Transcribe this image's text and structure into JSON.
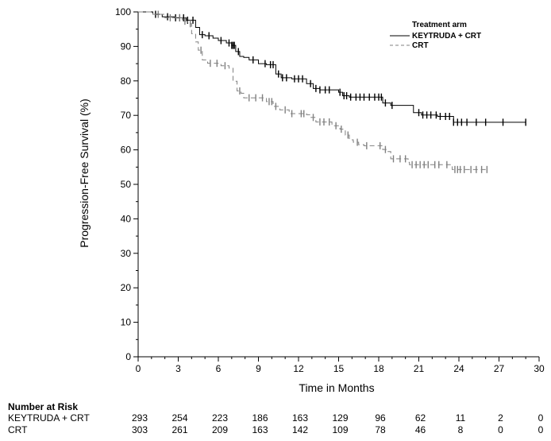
{
  "chart_data": {
    "type": "line",
    "title": "",
    "xlabel": "Time in Months",
    "ylabel": "Progression-Free Survival (%)",
    "xlim": [
      0,
      30
    ],
    "ylim": [
      0,
      100
    ],
    "x_ticks": [
      0,
      3,
      6,
      9,
      12,
      15,
      18,
      21,
      24,
      27,
      30
    ],
    "y_ticks": [
      0,
      10,
      20,
      30,
      40,
      50,
      60,
      70,
      80,
      90,
      100
    ],
    "grid": false,
    "legend": {
      "title": "Treatment arm",
      "placement": "top-right"
    },
    "series": [
      {
        "name": "KEYTRUDA + CRT",
        "color": "#000000",
        "line_style": "solid",
        "x": [
          0,
          1.1,
          1.8,
          2.7,
          3.6,
          4.3,
          4.6,
          5.0,
          5.6,
          6.0,
          6.6,
          7.0,
          7.3,
          7.6,
          7.9,
          8.3,
          9.0,
          9.6,
          10.3,
          10.7,
          11.5,
          12.6,
          13.1,
          13.6,
          15.0,
          15.3,
          15.8,
          18.3,
          18.9,
          20.6,
          21.2,
          22.4,
          23.6
        ],
        "y": [
          100,
          99.3,
          98.6,
          98.3,
          97.6,
          95.5,
          93.4,
          93.1,
          92.4,
          91.7,
          91.0,
          90.3,
          88.5,
          87.1,
          86.8,
          86.1,
          85.0,
          84.7,
          82.0,
          80.9,
          80.6,
          79.2,
          77.8,
          77.4,
          76.7,
          75.7,
          75.3,
          73.6,
          72.9,
          70.8,
          70.1,
          69.7,
          68.0
        ],
        "censor_x": [
          1.3,
          2.2,
          2.8,
          3.1,
          3.4,
          3.7,
          4.1,
          4.8,
          5.3,
          6.2,
          6.8,
          7.0,
          7.1,
          7.2,
          7.5,
          8.6,
          9.5,
          9.9,
          10.1,
          10.5,
          10.8,
          11.1,
          11.7,
          12.0,
          12.3,
          12.9,
          13.3,
          13.6,
          14.0,
          14.3,
          15.1,
          15.4,
          15.6,
          15.9,
          16.3,
          16.6,
          16.9,
          17.3,
          17.7,
          18.0,
          18.2,
          18.5,
          19.0,
          21.0,
          21.3,
          21.6,
          21.9,
          22.3,
          22.6,
          23.0,
          23.3,
          23.6,
          23.9,
          24.2,
          24.6,
          25.3,
          26.0,
          27.3,
          29.0
        ],
        "final_x": 29.0
      },
      {
        "name": "CRT",
        "color": "#808080",
        "line_style": "dashed",
        "x": [
          0,
          1.1,
          2.0,
          3.3,
          3.7,
          4.0,
          4.3,
          4.5,
          4.8,
          5.2,
          5.6,
          6.2,
          6.8,
          7.1,
          7.4,
          7.7,
          7.9,
          9.6,
          10.1,
          10.6,
          11.3,
          12.6,
          12.9,
          13.3,
          14.5,
          15.1,
          15.5,
          15.8,
          16.1,
          16.5,
          16.9,
          18.3,
          18.6,
          18.9,
          20.2,
          20.3,
          23.5
        ],
        "y": [
          100,
          99.3,
          98.3,
          97.3,
          96.6,
          93.7,
          91.3,
          88.9,
          86.1,
          85.1,
          85.1,
          84.4,
          83.7,
          79.9,
          77.1,
          76.4,
          75.1,
          74.0,
          72.6,
          71.6,
          70.5,
          70.2,
          69.4,
          68.1,
          67.0,
          66.0,
          64.3,
          62.9,
          62.2,
          61.5,
          61.2,
          60.1,
          59.5,
          57.4,
          56.4,
          55.7,
          54.3
        ],
        "censor_x": [
          1.5,
          2.4,
          3.1,
          3.5,
          3.9,
          4.7,
          5.4,
          5.9,
          6.5,
          7.6,
          8.3,
          8.8,
          9.3,
          9.8,
          10.0,
          10.3,
          11.0,
          11.5,
          12.2,
          12.4,
          13.1,
          13.6,
          13.9,
          14.3,
          14.8,
          15.2,
          15.7,
          16.4,
          17.1,
          18.1,
          18.5,
          19.1,
          19.6,
          20.0,
          20.5,
          20.8,
          21.1,
          21.4,
          21.7,
          22.2,
          22.5,
          23.1,
          23.7,
          23.9,
          24.1,
          24.4,
          24.9,
          25.3,
          25.7,
          26.1
        ],
        "final_x": 26.1
      }
    ]
  },
  "risk_table": {
    "header": "Number at Risk",
    "times": [
      0,
      3,
      6,
      9,
      12,
      15,
      18,
      21,
      24,
      27,
      30
    ],
    "rows": [
      {
        "label": "KEYTRUDA + CRT",
        "values": [
          "293",
          "254",
          "223",
          "186",
          "163",
          "129",
          "96",
          "62",
          "11",
          "2",
          "0"
        ]
      },
      {
        "label": "CRT",
        "values": [
          "303",
          "261",
          "209",
          "163",
          "142",
          "109",
          "78",
          "46",
          "8",
          "0",
          "0"
        ]
      }
    ]
  }
}
